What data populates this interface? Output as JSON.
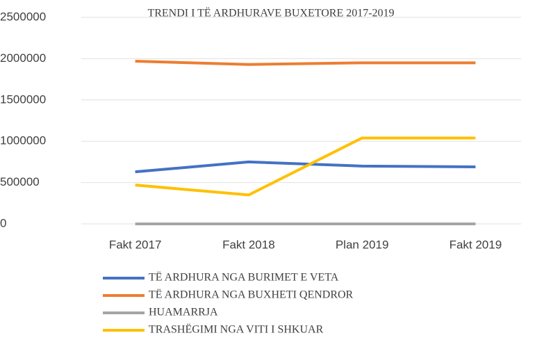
{
  "chart_data": {
    "type": "line",
    "title": "TRENDI I TË ARDHURAVE BUXETORE 2017-2019",
    "categories": [
      "Fakt 2017",
      "Fakt 2018",
      "Plan 2019",
      "Fakt 2019"
    ],
    "series": [
      {
        "name": "TË ARDHURA NGA BURIMET E VETA",
        "color": "#4472c4",
        "values": [
          630000,
          750000,
          700000,
          690000
        ]
      },
      {
        "name": "TË ARDHURA NGA BUXHETI QENDROR",
        "color": "#ed7d31",
        "values": [
          1970000,
          1930000,
          1950000,
          1950000
        ]
      },
      {
        "name": "HUAMARRJA",
        "color": "#a5a5a5",
        "values": [
          0,
          0,
          0,
          0
        ]
      },
      {
        "name": "TRASHËGIMI NGA VITI I SHKUAR",
        "color": "#ffc000",
        "values": [
          470000,
          350000,
          1040000,
          1040000
        ]
      }
    ],
    "ylim": [
      0,
      2500000
    ],
    "yticks": [
      0,
      500000,
      1000000,
      1500000,
      2000000,
      2500000
    ],
    "grid": true,
    "legend": "bottom"
  }
}
